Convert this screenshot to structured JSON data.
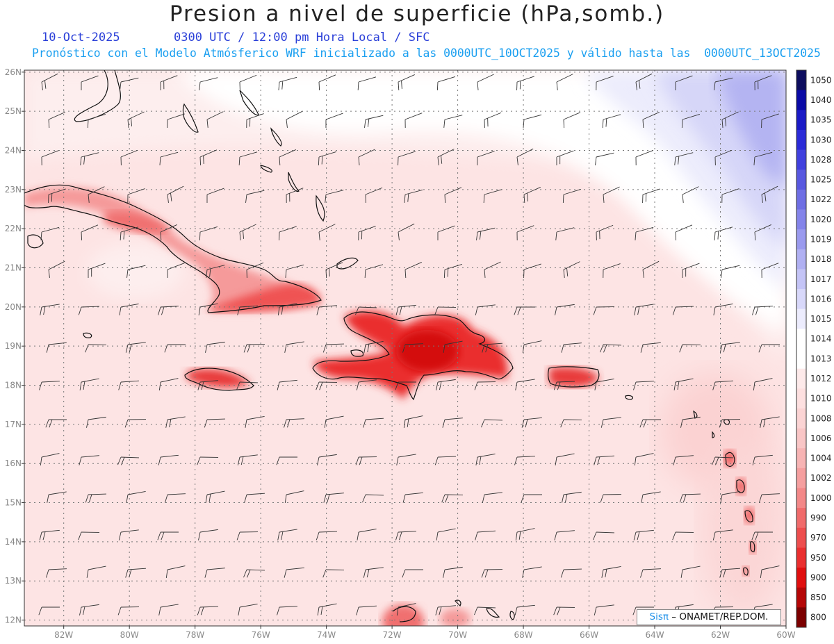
{
  "header": {
    "title": "Presion a nivel de superficie (hPa,somb.)",
    "date": "10-Oct-2025",
    "time": "0300 UTC / 12:00 pm Hora Local / SFC",
    "forecast": "Pronóstico con el Modelo Atmósferico WRF inicializado a las 0000UTC_10OCT2025 y válido hasta las  0000UTC_13OCT2025"
  },
  "map": {
    "lon_labels": [
      "82W",
      "80W",
      "78W",
      "76W",
      "74W",
      "72W",
      "70W",
      "68W",
      "66W",
      "64W",
      "62W",
      "60W"
    ],
    "lat_labels": [
      "26N",
      "25N",
      "24N",
      "23N",
      "22N",
      "21N",
      "20N",
      "19N",
      "18N",
      "17N",
      "16N",
      "15N",
      "14N",
      "13N",
      "12N"
    ],
    "lon_range": [
      -83.2,
      -60.0
    ],
    "lat_range": [
      11.85,
      26.05
    ]
  },
  "colorbar": {
    "levels": [
      "1050",
      "1040",
      "1035",
      "1030",
      "1028",
      "1025",
      "1022",
      "1020",
      "1019",
      "1018",
      "1017",
      "1016",
      "1015",
      "1014",
      "1013",
      "1012",
      "1010",
      "1008",
      "1006",
      "1004",
      "1002",
      "1000",
      "990",
      "970",
      "950",
      "900",
      "850",
      "800"
    ],
    "colors": [
      "#0d0d5e",
      "#0a0aa6",
      "#1a1ac6",
      "#2b2bd8",
      "#4040de",
      "#5858e0",
      "#6e6ee4",
      "#8484ea",
      "#9a9aee",
      "#b0b0f2",
      "#c4c4f6",
      "#d8d8fa",
      "#ececfd",
      "#ffffff",
      "#ffffff",
      "#fdeaea",
      "#fde0e0",
      "#fbd4d4",
      "#f9c6c6",
      "#f7b4b4",
      "#f59f9f",
      "#f38888",
      "#f06b6b",
      "#ed4e4e",
      "#ea2f2f",
      "#e00f0f",
      "#b50707",
      "#7c0000"
    ]
  },
  "credit": {
    "brand": "Sisπ",
    "text": "– ONAMET/REP.DOM."
  }
}
